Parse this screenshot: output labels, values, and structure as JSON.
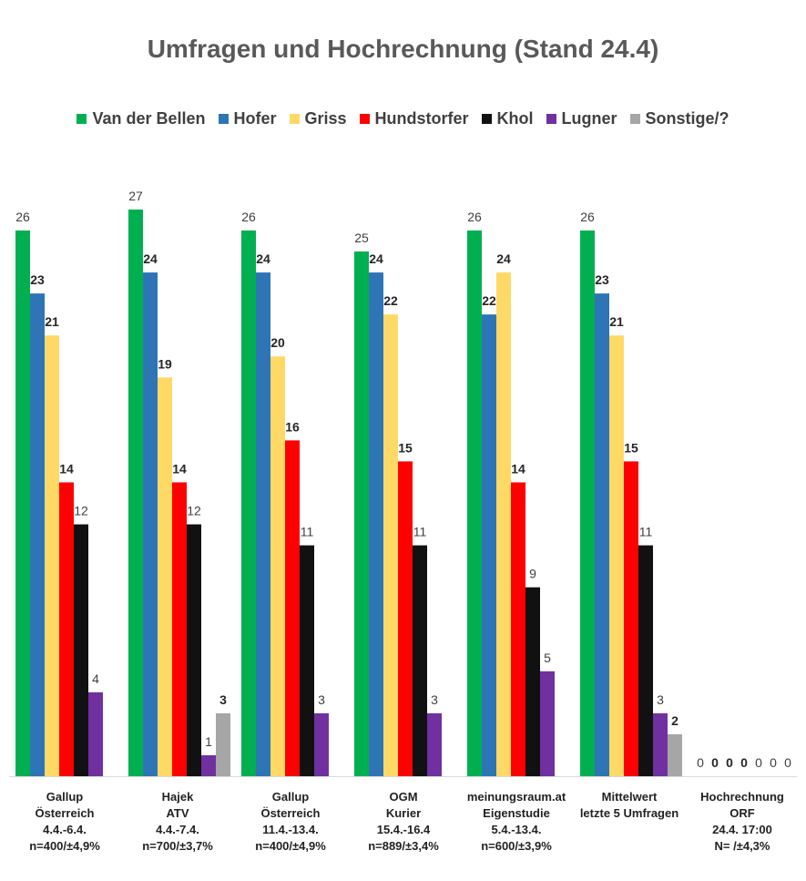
{
  "chart_data": {
    "type": "bar",
    "title": "Umfragen und Hochrechnung (Stand 24.4)",
    "categories": [
      [
        "Gallup",
        "Österreich",
        "4.4.-6.4.",
        "n=400/±4,9%"
      ],
      [
        "Hajek",
        "ATV",
        "4.4.-7.4.",
        "n=700/±3,7%"
      ],
      [
        "Gallup",
        "Österreich",
        "11.4.-13.4.",
        "n=400/±4,9%"
      ],
      [
        "OGM",
        "Kurier",
        "15.4.-16.4",
        "n=889/±3,4%"
      ],
      [
        "meinungsraum.at",
        "Eigenstudie",
        "5.4.-13.4.",
        "n=600/±3,9%"
      ],
      [
        "Mittelwert",
        "letzte 5 Umfragen",
        "",
        ""
      ],
      [
        "Hochrechnung",
        "ORF",
        "24.4. 17:00",
        "N=    /±4,3%"
      ]
    ],
    "series": [
      {
        "name": "Van der Bellen",
        "color": "#00b050",
        "values": [
          26,
          27,
          26,
          25,
          26,
          26,
          0
        ],
        "label_bold": false
      },
      {
        "name": "Hofer",
        "color": "#2e75b6",
        "values": [
          23,
          24,
          24,
          24,
          22,
          23,
          0
        ],
        "label_bold": true
      },
      {
        "name": "Griss",
        "color": "#ffd966",
        "values": [
          21,
          19,
          20,
          22,
          24,
          21,
          0
        ],
        "label_bold": true
      },
      {
        "name": "Hundstorfer",
        "color": "#ff0000",
        "values": [
          14,
          14,
          16,
          15,
          14,
          15,
          0
        ],
        "label_bold": true
      },
      {
        "name": "Khol",
        "color": "#111111",
        "values": [
          12,
          12,
          11,
          11,
          9,
          11,
          0
        ],
        "label_bold": false
      },
      {
        "name": "Lugner",
        "color": "#7030a0",
        "values": [
          4,
          1,
          3,
          3,
          5,
          3,
          0
        ],
        "label_bold": false
      },
      {
        "name": "Sonstige/?",
        "color": "#a6a6a6",
        "values": [
          null,
          3,
          null,
          null,
          null,
          2,
          0
        ],
        "label_bold": true
      }
    ],
    "ylim": [
      0,
      30
    ],
    "grid": false,
    "legend_position": "top"
  }
}
